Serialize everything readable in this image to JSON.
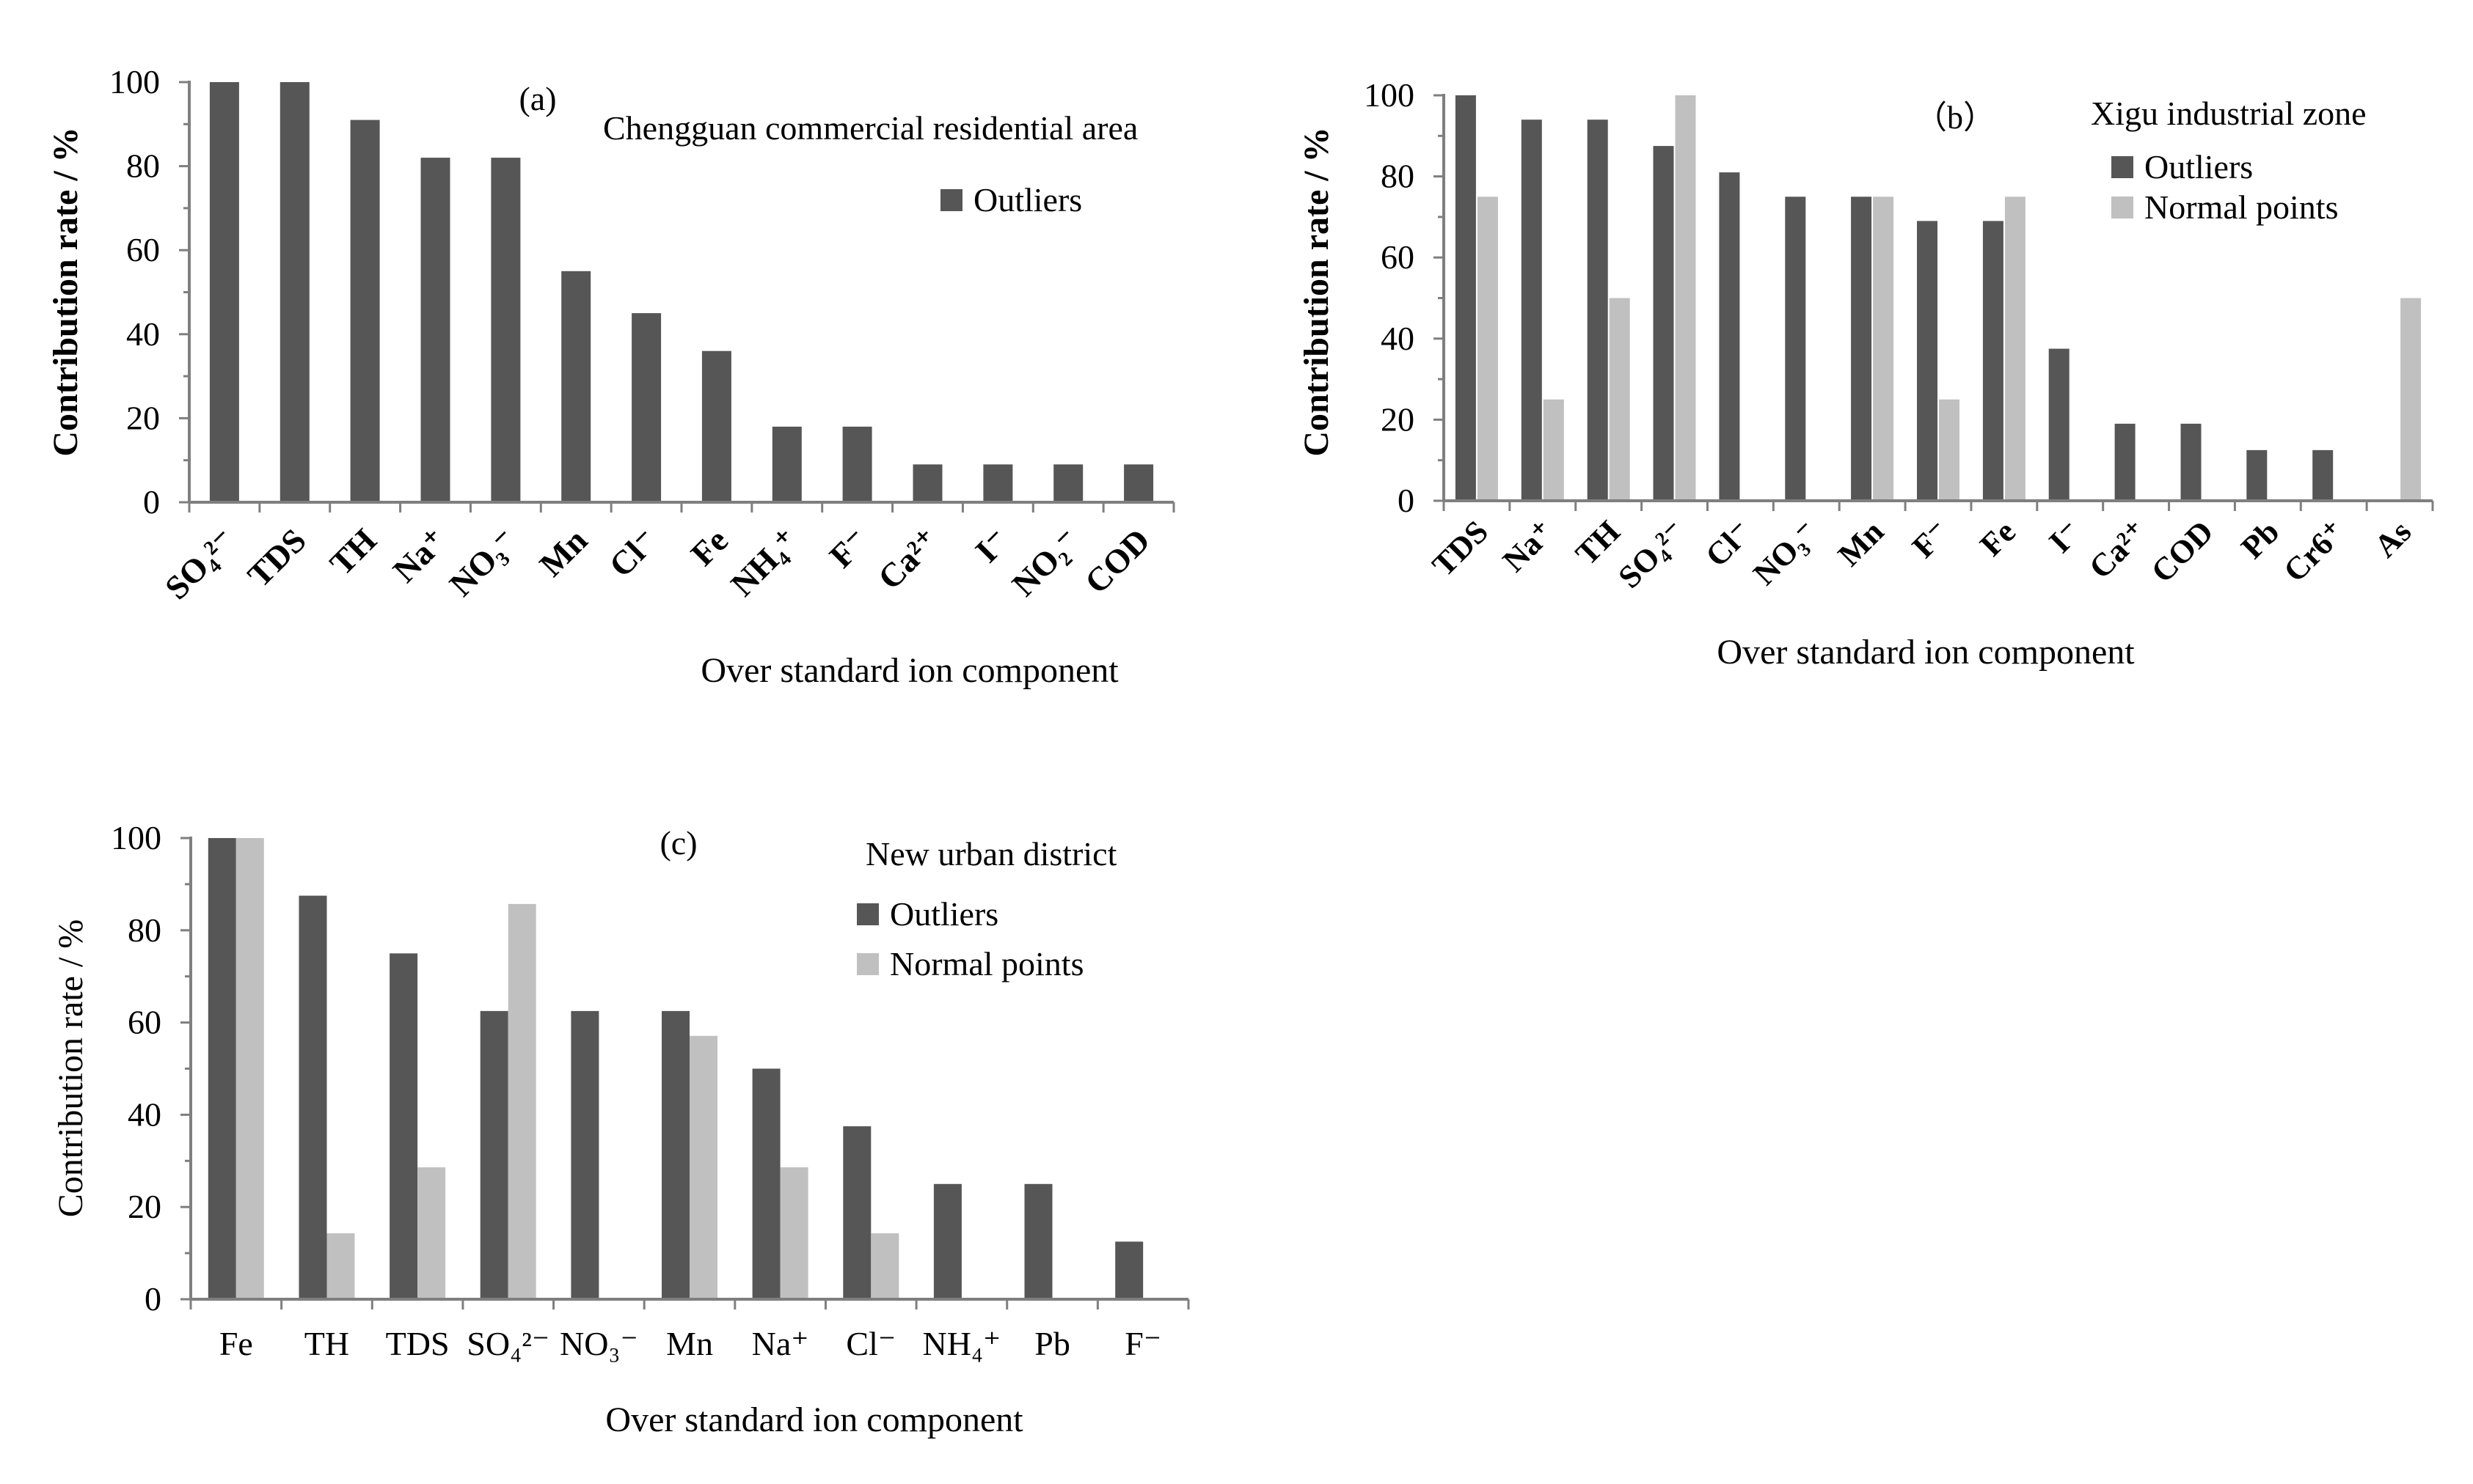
{
  "colors": {
    "outliers": "#565656",
    "normal_points": "#c0c0c0",
    "axis": "#7f7f7f"
  },
  "chart_data": [
    {
      "id": "a",
      "type": "bar",
      "panel_label": "(a)",
      "title": "Chengguan commercial residential area",
      "xlabel": "Over standard ion component",
      "ylabel": "Contribution rate / %",
      "ylim": [
        0,
        100
      ],
      "yticks": [
        "0",
        "20",
        "40",
        "60",
        "80",
        "100"
      ],
      "legend_position": "top-right",
      "tick_style": "rotated",
      "categories": [
        "SO₄²⁻",
        "TDS",
        "TH",
        "Na⁺",
        "NO₃⁻",
        "Mn",
        "Cl⁻",
        "Fe",
        "NH₄⁺",
        "F⁻",
        "Ca²⁺",
        "I⁻",
        "NO₂⁻",
        "COD"
      ],
      "series": [
        {
          "name": "Outliers",
          "key": "outliers",
          "values": [
            100,
            100,
            91,
            82,
            82,
            55,
            45,
            36,
            18,
            18,
            9,
            9,
            9,
            9
          ]
        }
      ]
    },
    {
      "id": "b",
      "type": "bar",
      "panel_label": "（b）",
      "title": "Xigu industrial zone",
      "xlabel": "Over standard ion component",
      "ylabel": "Contribution rate / %",
      "ylim": [
        0,
        100
      ],
      "yticks": [
        "0",
        "20",
        "40",
        "60",
        "80",
        "100"
      ],
      "legend_position": "top-right",
      "tick_style": "rotated",
      "categories": [
        "TDS",
        "Na⁺",
        "TH",
        "SO₄²⁻",
        "Cl⁻",
        "NO₃⁻",
        "Mn",
        "F⁻",
        "Fe",
        "I⁻",
        "Ca²⁺",
        "COD",
        "Pb",
        "Cr6⁺",
        "As"
      ],
      "series": [
        {
          "name": "Outliers",
          "key": "outliers",
          "values": [
            100,
            94,
            94,
            87.5,
            81,
            75,
            75,
            69,
            69,
            37.5,
            19,
            19,
            12.5,
            12.5,
            0
          ]
        },
        {
          "name": "Normal points",
          "key": "normal_points",
          "values": [
            75,
            25,
            50,
            100,
            0,
            0,
            75,
            25,
            75,
            0,
            0,
            0,
            0,
            0,
            50
          ]
        }
      ]
    },
    {
      "id": "c",
      "type": "bar",
      "panel_label": "(c)",
      "title": "New urban district",
      "xlabel": "Over standard ion component",
      "ylabel": "Contribution rate / %",
      "ylim": [
        0,
        100
      ],
      "yticks": [
        "0",
        "20",
        "40",
        "60",
        "80",
        "100"
      ],
      "legend_position": "top-right",
      "tick_style": "horizontal",
      "categories": [
        "Fe",
        "TH",
        "TDS",
        "SO₄²⁻",
        "NO₃⁻",
        "Mn",
        "Na⁺",
        "Cl⁻",
        "NH₄⁺",
        "Pb",
        "F⁻"
      ],
      "series": [
        {
          "name": "Outliers",
          "key": "outliers",
          "values": [
            100,
            87.5,
            75,
            62.5,
            62.5,
            62.5,
            50,
            37.5,
            25,
            25,
            12.5
          ]
        },
        {
          "name": "Normal points",
          "key": "normal_points",
          "values": [
            100,
            14.3,
            28.6,
            85.7,
            0,
            57.1,
            28.6,
            14.3,
            0,
            0,
            0
          ]
        }
      ]
    }
  ]
}
